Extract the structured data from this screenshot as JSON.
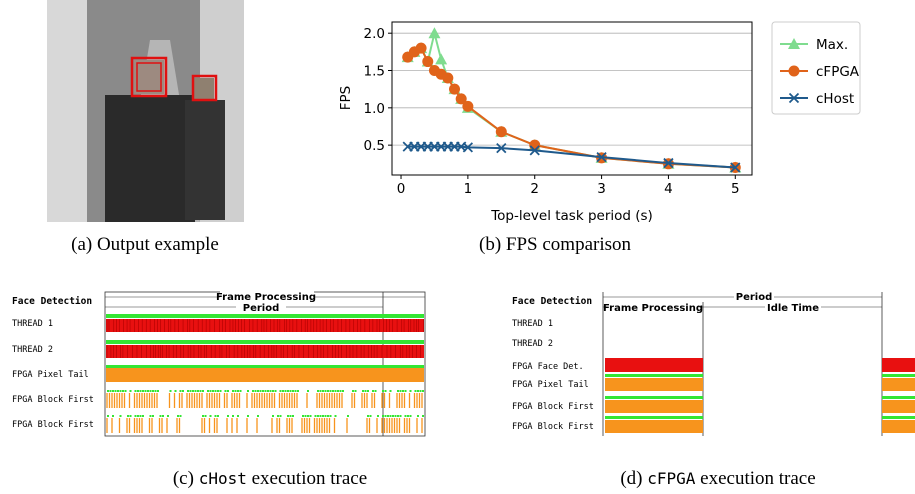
{
  "chart_data": {
    "type": "line",
    "x_label": "Top-level task period (s)",
    "y_label": "FPS",
    "x": [
      0.1,
      0.2,
      0.3,
      0.4,
      0.5,
      0.6,
      0.7,
      0.8,
      0.9,
      1.0,
      1.5,
      2,
      3,
      4,
      5
    ],
    "series": [
      {
        "name": "Max.",
        "color": "#7fdc8f",
        "marker": "triangle",
        "values": [
          1.68,
          1.75,
          1.8,
          1.62,
          2.0,
          1.65,
          1.4,
          1.25,
          1.12,
          1.0,
          0.68,
          0.5,
          0.33,
          0.25,
          0.2
        ]
      },
      {
        "name": "cFPGA",
        "color": "#e0631a",
        "marker": "circle",
        "values": [
          1.68,
          1.75,
          1.8,
          1.62,
          1.5,
          1.45,
          1.4,
          1.25,
          1.12,
          1.02,
          0.68,
          0.5,
          0.33,
          0.25,
          0.2
        ]
      },
      {
        "name": "cHost",
        "color": "#1f5a8c",
        "marker": "x",
        "values": [
          0.48,
          0.48,
          0.48,
          0.48,
          0.48,
          0.48,
          0.48,
          0.48,
          0.48,
          0.47,
          0.46,
          0.43,
          0.34,
          0.26,
          0.2
        ]
      }
    ],
    "xlim": [
      -0.135,
      5.25
    ],
    "ylim": [
      0.1,
      2.15
    ],
    "xticks": [
      0,
      1,
      2,
      3,
      4,
      5
    ],
    "yticks": [
      {
        "value": 0.5,
        "label": "0.5"
      },
      {
        "value": 1,
        "label": "1.0"
      },
      {
        "value": 1.5,
        "label": "1.5"
      },
      {
        "value": 2,
        "label": "2.0"
      }
    ],
    "grid": true,
    "legend": "outside-right"
  },
  "captions": {
    "a": "(a) Output example",
    "b": "(b) FPS comparison",
    "c": {
      "label": "(c)",
      "code": "cHost",
      "text": "execution trace"
    },
    "d": {
      "label": "(d)",
      "code": "cFPGA",
      "text": "execution trace"
    }
  },
  "trace_c": {
    "title": "Face Detection",
    "header": "Frame Processing",
    "sub": "Period",
    "rows": [
      "THREAD 1",
      "THREAD 2",
      "FPGA Pixel Tail",
      "FPGA Block First",
      "FPGA Block First"
    ]
  },
  "trace_d": {
    "title": "Face Detection",
    "header": "Period",
    "left": "Frame Processing",
    "right": "Idle Time",
    "rows": [
      "THREAD 1",
      "THREAD 2",
      "FPGA Face Det.",
      "FPGA Pixel Tail",
      "FPGA Block First",
      "FPGA Block First"
    ]
  }
}
